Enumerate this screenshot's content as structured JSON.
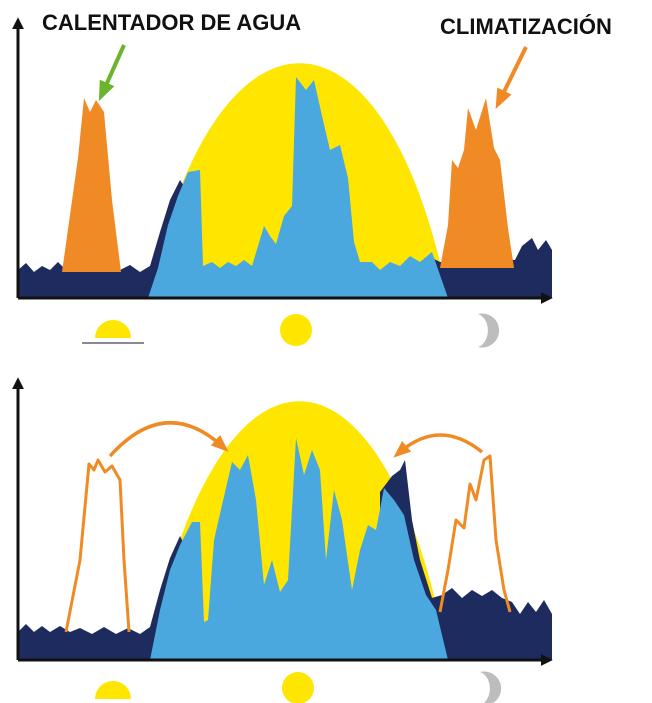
{
  "labels": {
    "water_heater": "CALENTADOR DE AGUA",
    "climatization": "CLIMATIZACIÓN"
  },
  "icons": [
    "sunrise-icon",
    "sun-icon",
    "moon-icon"
  ],
  "colors": {
    "solar_curve": "#FFE600",
    "solar_used": "#4AA8DF",
    "base_load": "#1E2B5E",
    "shiftable_load": "#F08A24",
    "water_heater_arrow": "#6BB42E",
    "axis": "#111111",
    "moon": "#BDBDBD"
  }
}
